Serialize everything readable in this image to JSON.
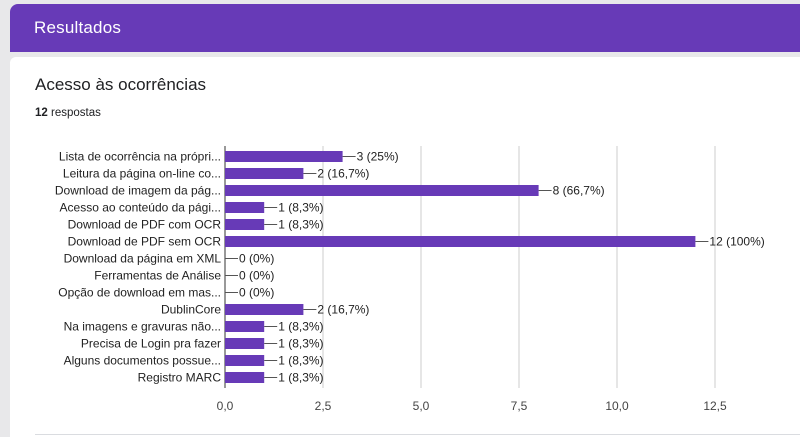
{
  "header": {
    "title": "Resultados"
  },
  "question": {
    "title": "Acesso às ocorrências",
    "responses_count": "12",
    "responses_label": "respostas"
  },
  "colors": {
    "accent": "#673ab7",
    "bar": "#673ab7"
  },
  "chart_data": {
    "type": "bar",
    "orientation": "horizontal",
    "categories": [
      "Lista de ocorrência na própri...",
      "Leitura da página on-line co...",
      "Download de imagem da pág...",
      "Acesso ao conteúdo da pági...",
      "Download de PDF com OCR",
      "Download de PDF sem OCR",
      "Download da página em XML",
      "Ferramentas de Análise",
      "Opção de download em mas...",
      "DublinCore",
      "Na imagens e gravuras não...",
      "Precisa de Login pra fazer",
      "Alguns documentos possue...",
      "Registro MARC"
    ],
    "values": [
      3,
      2,
      8,
      1,
      1,
      12,
      0,
      0,
      0,
      2,
      1,
      1,
      1,
      1
    ],
    "value_labels": [
      "3 (25%)",
      "2 (16,7%)",
      "8 (66,7%)",
      "1 (8,3%)",
      "1 (8,3%)",
      "12 (100%)",
      "0 (0%)",
      "0 (0%)",
      "0 (0%)",
      "2 (16,7%)",
      "1 (8,3%)",
      "1 (8,3%)",
      "1 (8,3%)",
      "1 (8,3%)"
    ],
    "xlim": [
      0,
      12.5
    ],
    "xticks": [
      0,
      2.5,
      5,
      7.5,
      10,
      12.5
    ],
    "xtick_labels": [
      "0,0",
      "2,5",
      "5,0",
      "7,5",
      "10,0",
      "12,5"
    ],
    "grid": true,
    "legend": false
  }
}
